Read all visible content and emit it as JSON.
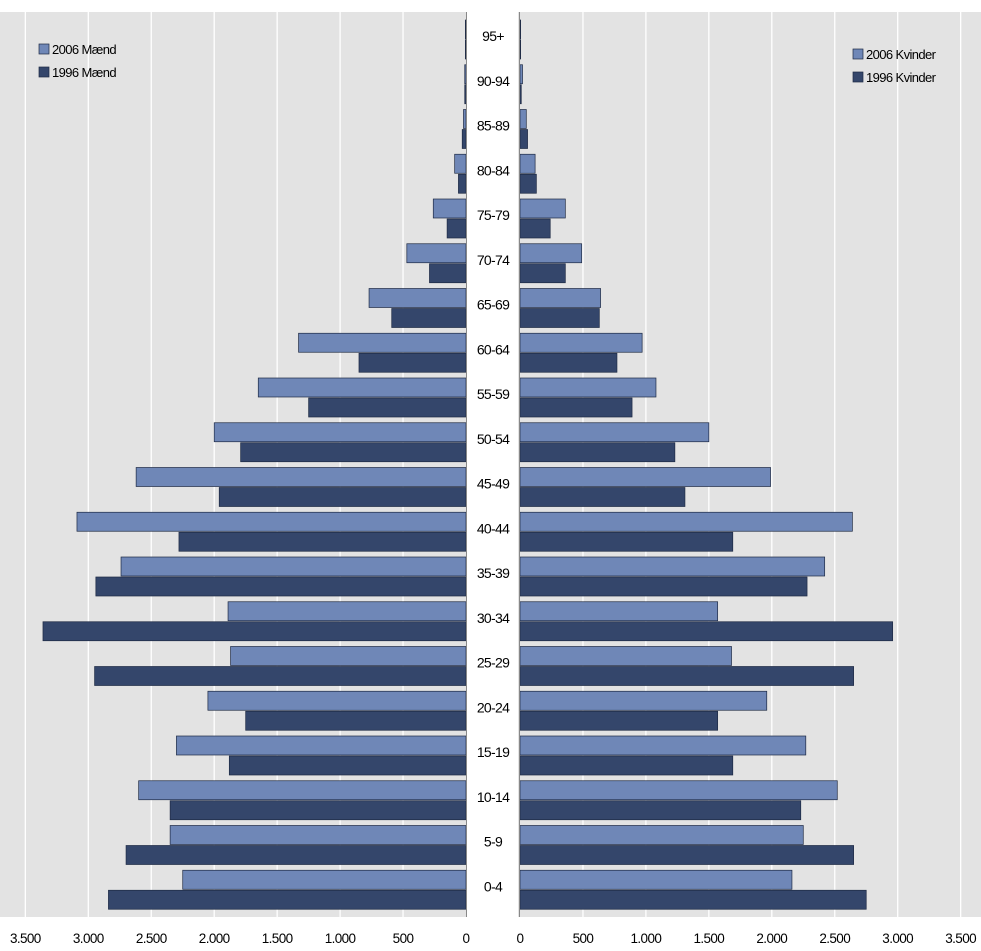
{
  "chart_data": {
    "type": "bar",
    "orientation": "horizontal",
    "layout": "population-pyramid",
    "categories": [
      "0-4",
      "5-9",
      "10-14",
      "15-19",
      "20-24",
      "25-29",
      "30-34",
      "35-39",
      "40-44",
      "45-49",
      "50-54",
      "55-59",
      "60-64",
      "65-69",
      "70-74",
      "75-79",
      "80-84",
      "85-89",
      "90-94",
      "95+"
    ],
    "panels": [
      {
        "side": "left",
        "legend_position": "top-left",
        "tick_labels": [
          "3.500",
          "3.000",
          "2.500",
          "2.000",
          "1.500",
          "1.000",
          "500",
          "0"
        ],
        "xlim": [
          0,
          3500
        ],
        "series": [
          {
            "name": "2006 Mænd",
            "color": "#6f87b7",
            "values": [
              2250,
              2350,
              2600,
              2300,
              2050,
              1870,
              1890,
              2740,
              3090,
              2620,
              2000,
              1650,
              1330,
              770,
              470,
              260,
              90,
              20,
              10,
              5
            ]
          },
          {
            "name": "1996 Mænd",
            "color": "#34466b",
            "values": [
              2840,
              2700,
              2350,
              1880,
              1750,
              2950,
              3360,
              2940,
              2280,
              1960,
              1790,
              1250,
              850,
              590,
              290,
              150,
              60,
              30,
              10,
              5
            ]
          }
        ]
      },
      {
        "side": "right",
        "legend_position": "top-right",
        "tick_labels": [
          "0",
          "500",
          "1.000",
          "1.500",
          "2.000",
          "2.500",
          "3.000",
          "3.500"
        ],
        "xlim": [
          0,
          3500
        ],
        "series": [
          {
            "name": "2006 Kvinder",
            "color": "#6f87b7",
            "values": [
              2160,
              2250,
              2520,
              2270,
              1960,
              1680,
              1570,
              2420,
              2640,
              1990,
              1500,
              1080,
              970,
              640,
              490,
              360,
              120,
              50,
              20,
              5
            ]
          },
          {
            "name": "1996 Kvinder",
            "color": "#34466b",
            "values": [
              2750,
              2650,
              2230,
              1690,
              1570,
              2650,
              2960,
              2280,
              1690,
              1310,
              1230,
              890,
              770,
              630,
              360,
              240,
              130,
              60,
              10,
              5
            ]
          }
        ]
      }
    ],
    "grid": true,
    "background": "#e3e3e3"
  }
}
